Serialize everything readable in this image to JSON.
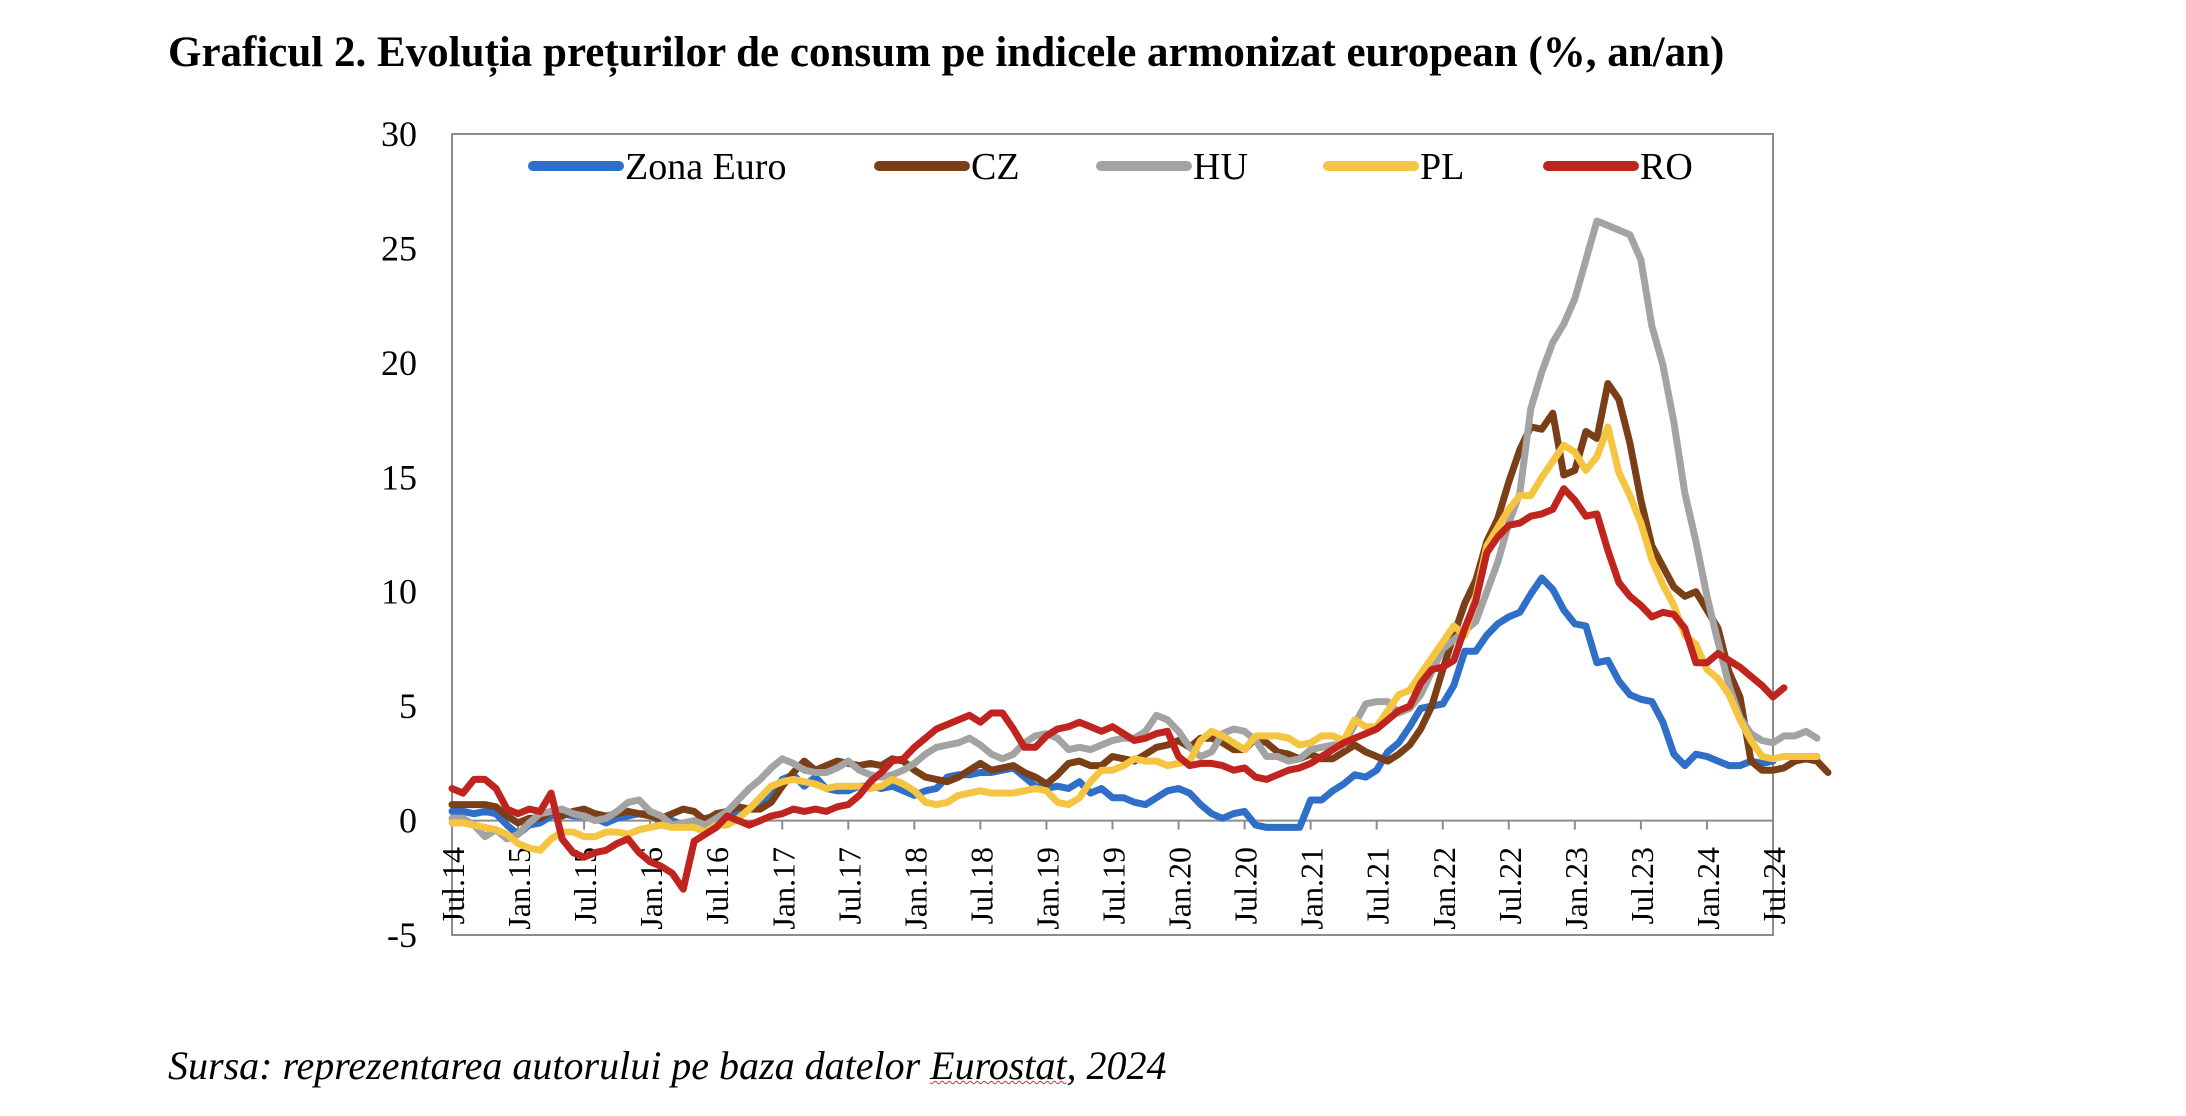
{
  "chart_data": {
    "type": "line",
    "title": "Graficul 2. Evoluția prețurilor de consum pe indicele armonizat european (%, an/an)",
    "xlabel": "",
    "ylabel": "",
    "ylim": [
      -5,
      30
    ],
    "yticks": [
      -5,
      0,
      5,
      10,
      15,
      20,
      25,
      30
    ],
    "grid": false,
    "legend_position": "top",
    "x_start": "2014-07",
    "x_end": "2024-07",
    "x_tick_labels": [
      "Jul.14",
      "Jan.15",
      "Jul.15",
      "Jan.16",
      "Jul.16",
      "Jan.17",
      "Jul.17",
      "Jan.18",
      "Jul.18",
      "Jan.19",
      "Jul.19",
      "Jan.20",
      "Jul.20",
      "Jan.21",
      "Jul.21",
      "Jan.22",
      "Jul.22",
      "Jan.23",
      "Jul.23",
      "Jan.24",
      "Jul.24"
    ],
    "series": [
      {
        "name": "Zona Euro",
        "color": "#2f6fc7",
        "values": [
          0.4,
          0.4,
          0.3,
          0.4,
          0.3,
          -0.2,
          -0.6,
          -0.2,
          -0.1,
          0.2,
          0.3,
          0.2,
          0.2,
          0.1,
          -0.1,
          0.1,
          0.2,
          0.3,
          0.3,
          -0.1,
          0.0,
          -0.2,
          -0.1,
          0.1,
          0.2,
          0.2,
          0.4,
          0.5,
          0.6,
          1.1,
          1.8,
          2.0,
          1.5,
          1.9,
          1.4,
          1.3,
          1.3,
          1.5,
          1.5,
          1.4,
          1.5,
          1.3,
          1.1,
          1.3,
          1.4,
          1.9,
          2.0,
          2.0,
          2.1,
          2.1,
          2.2,
          2.3,
          1.9,
          1.5,
          1.4,
          1.5,
          1.4,
          1.7,
          1.2,
          1.4,
          1.0,
          1.0,
          0.8,
          0.7,
          1.0,
          1.3,
          1.4,
          1.2,
          0.7,
          0.3,
          0.1,
          0.3,
          0.4,
          -0.2,
          -0.3,
          -0.3,
          -0.3,
          -0.3,
          0.9,
          0.9,
          1.3,
          1.6,
          2.0,
          1.9,
          2.2,
          3.0,
          3.4,
          4.1,
          4.9,
          5.0,
          5.1,
          5.9,
          7.4,
          7.4,
          8.1,
          8.6,
          8.9,
          9.1,
          9.9,
          10.6,
          10.1,
          9.2,
          8.6,
          8.5,
          6.9,
          7.0,
          6.1,
          5.5,
          5.3,
          5.2,
          4.3,
          2.9,
          2.4,
          2.9,
          2.8,
          2.6,
          2.4,
          2.4,
          2.6,
          2.5,
          2.6
        ],
        "note": "Values are approximate readings from the plotted line."
      },
      {
        "name": "CZ",
        "color": "#7b3f17",
        "values": [
          0.7,
          0.7,
          0.7,
          0.7,
          0.6,
          0.2,
          -0.1,
          0.1,
          0.1,
          0.4,
          0.2,
          0.4,
          0.5,
          0.3,
          0.2,
          0.3,
          0.4,
          0.3,
          0.2,
          0.1,
          0.3,
          0.5,
          0.4,
          0.0,
          0.3,
          0.4,
          0.6,
          0.5,
          0.5,
          0.8,
          1.5,
          2.1,
          2.6,
          2.2,
          2.4,
          2.6,
          2.5,
          2.4,
          2.5,
          2.4,
          2.7,
          2.6,
          2.2,
          1.9,
          1.8,
          1.7,
          1.9,
          2.2,
          2.5,
          2.2,
          2.3,
          2.4,
          2.1,
          1.9,
          1.6,
          2.0,
          2.5,
          2.6,
          2.4,
          2.4,
          2.8,
          2.7,
          2.6,
          2.9,
          3.2,
          3.3,
          3.5,
          3.2,
          3.6,
          3.6,
          3.4,
          3.1,
          3.1,
          3.6,
          3.4,
          3.0,
          2.9,
          2.7,
          2.9,
          2.7,
          2.7,
          3.0,
          3.3,
          3.0,
          2.8,
          2.6,
          2.9,
          3.3,
          4.0,
          5.0,
          6.6,
          8.1,
          9.5,
          10.5,
          12.2,
          13.2,
          14.8,
          16.2,
          17.2,
          17.1,
          17.8,
          15.1,
          15.3,
          17.0,
          16.7,
          19.1,
          18.4,
          16.5,
          14.0,
          12.0,
          11.1,
          10.2,
          9.8,
          10.0,
          9.2,
          8.4,
          6.5,
          5.4,
          2.6,
          2.2,
          2.2,
          2.3,
          2.6,
          2.7,
          2.6,
          2.1
        ],
        "note": "Values are approximate readings from the plotted line."
      },
      {
        "name": "HU",
        "color": "#a3a3a3",
        "values": [
          0.1,
          0.1,
          -0.2,
          -0.7,
          -0.4,
          -0.8,
          -0.6,
          -0.1,
          0.3,
          0.4,
          0.5,
          0.3,
          0.2,
          0.0,
          0.1,
          0.4,
          0.8,
          0.9,
          0.4,
          0.2,
          -0.2,
          -0.1,
          0.0,
          -0.2,
          0.1,
          0.4,
          0.9,
          1.4,
          1.8,
          2.3,
          2.7,
          2.5,
          2.2,
          2.1,
          2.1,
          2.3,
          2.6,
          2.2,
          2.0,
          1.9,
          2.0,
          2.2,
          2.5,
          2.9,
          3.2,
          3.3,
          3.4,
          3.6,
          3.3,
          2.9,
          2.7,
          2.9,
          3.4,
          3.7,
          3.8,
          3.6,
          3.1,
          3.2,
          3.1,
          3.3,
          3.5,
          3.6,
          3.6,
          3.9,
          4.6,
          4.4,
          3.9,
          3.2,
          2.8,
          3.0,
          3.8,
          4.0,
          3.9,
          3.5,
          2.8,
          2.8,
          2.6,
          2.7,
          3.1,
          3.2,
          3.3,
          3.3,
          4.2,
          5.1,
          5.2,
          5.2,
          4.7,
          4.9,
          5.5,
          6.5,
          7.5,
          7.9,
          8.3,
          8.7,
          10.0,
          11.3,
          13.0,
          14.3,
          18.0,
          19.6,
          20.9,
          21.7,
          22.8,
          24.5,
          26.2,
          26.0,
          25.8,
          25.6,
          24.5,
          21.6,
          19.9,
          17.4,
          14.3,
          12.2,
          9.8,
          7.8,
          5.9,
          4.5,
          3.8,
          3.5,
          3.4,
          3.7,
          3.7,
          3.9,
          3.6
        ],
        "note": "Values are approximate readings from the plotted line."
      },
      {
        "name": "PL",
        "color": "#f5c542",
        "values": [
          -0.1,
          -0.1,
          -0.2,
          -0.3,
          -0.4,
          -0.6,
          -1.0,
          -1.2,
          -1.3,
          -0.8,
          -0.5,
          -0.5,
          -0.7,
          -0.7,
          -0.5,
          -0.5,
          -0.6,
          -0.4,
          -0.3,
          -0.2,
          -0.3,
          -0.3,
          -0.3,
          -0.5,
          -0.2,
          -0.2,
          0.1,
          0.5,
          1.0,
          1.5,
          1.7,
          1.8,
          1.7,
          1.6,
          1.4,
          1.5,
          1.5,
          1.5,
          1.4,
          1.5,
          1.8,
          1.6,
          1.3,
          0.8,
          0.7,
          0.8,
          1.1,
          1.2,
          1.3,
          1.2,
          1.2,
          1.2,
          1.3,
          1.4,
          1.3,
          0.8,
          0.7,
          1.0,
          1.7,
          2.2,
          2.2,
          2.4,
          2.7,
          2.6,
          2.6,
          2.4,
          2.5,
          2.6,
          3.5,
          3.9,
          3.7,
          3.4,
          3.1,
          3.7,
          3.7,
          3.7,
          3.6,
          3.3,
          3.4,
          3.7,
          3.7,
          3.5,
          4.4,
          4.1,
          4.1,
          4.8,
          5.5,
          5.7,
          6.4,
          7.1,
          7.8,
          8.5,
          8.1,
          9.8,
          12.0,
          12.8,
          13.6,
          14.2,
          14.2,
          15.0,
          15.7,
          16.4,
          16.1,
          15.3,
          15.9,
          17.2,
          15.2,
          14.2,
          13.0,
          11.4,
          10.3,
          9.4,
          8.1,
          7.7,
          6.6,
          6.2,
          5.5,
          4.4,
          3.5,
          2.8,
          2.7,
          2.8,
          2.8,
          2.8,
          2.8
        ],
        "note": "Values are approximate readings from the plotted line."
      },
      {
        "name": "RO",
        "color": "#c0241f",
        "values": [
          1.4,
          1.2,
          1.8,
          1.8,
          1.4,
          0.5,
          0.3,
          0.5,
          0.4,
          1.2,
          -0.8,
          -1.4,
          -1.6,
          -1.4,
          -1.3,
          -1.0,
          -0.8,
          -1.4,
          -1.8,
          -2.0,
          -2.3,
          -3.0,
          -0.9,
          -0.6,
          -0.3,
          0.2,
          0.0,
          -0.2,
          0.0,
          0.2,
          0.3,
          0.5,
          0.4,
          0.5,
          0.4,
          0.6,
          0.7,
          1.1,
          1.7,
          2.1,
          2.6,
          2.7,
          3.2,
          3.6,
          4.0,
          4.2,
          4.4,
          4.6,
          4.3,
          4.7,
          4.7,
          4.0,
          3.2,
          3.2,
          3.7,
          4.0,
          4.1,
          4.3,
          4.1,
          3.9,
          4.1,
          3.8,
          3.5,
          3.6,
          3.8,
          3.9,
          2.8,
          2.4,
          2.5,
          2.5,
          2.4,
          2.2,
          2.3,
          1.9,
          1.8,
          2.0,
          2.2,
          2.3,
          2.5,
          2.8,
          3.1,
          3.4,
          3.6,
          3.8,
          4.0,
          4.4,
          4.8,
          5.0,
          6.0,
          6.6,
          6.7,
          7.0,
          8.4,
          9.6,
          11.7,
          12.4,
          12.9,
          13.0,
          13.3,
          13.4,
          13.6,
          14.5,
          14.0,
          13.3,
          13.4,
          11.8,
          10.4,
          9.8,
          9.4,
          8.9,
          9.1,
          9.0,
          8.4,
          6.9,
          6.9,
          7.3,
          7.0,
          6.7,
          6.3,
          5.9,
          5.4,
          5.8
        ],
        "note": "Values are approximate readings from the plotted line."
      }
    ]
  },
  "footer": {
    "source_prefix": "Sursa: reprezentarea autorului pe baza datelor ",
    "source_link": "Eurostat",
    "source_suffix": ", 2024"
  }
}
